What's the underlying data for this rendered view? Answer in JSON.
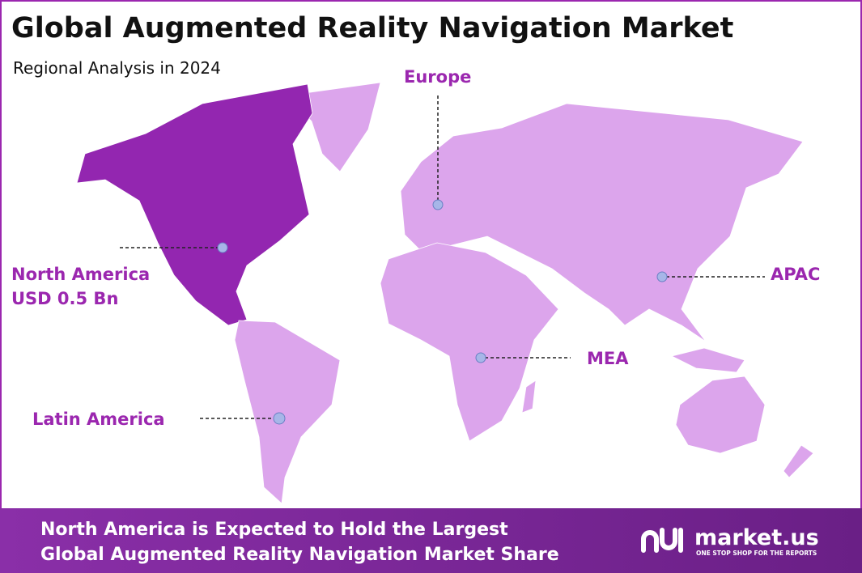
{
  "header": {
    "title": "Global Augmented Reality Navigation Market",
    "subtitle": "Regional Analysis in 2024"
  },
  "regions": [
    {
      "label": "North America",
      "value": "USD 0.5 Bn"
    },
    {
      "label": "Europe"
    },
    {
      "label": "APAC"
    },
    {
      "label": "MEA"
    },
    {
      "label": "Latin America"
    }
  ],
  "footer": {
    "lines": [
      "North America is Expected to Hold the Largest",
      "Global Augmented Reality Navigation Market Share"
    ],
    "logo": {
      "name": "market.us",
      "tagline": "ONE STOP SHOP FOR THE REPORTS"
    }
  }
}
